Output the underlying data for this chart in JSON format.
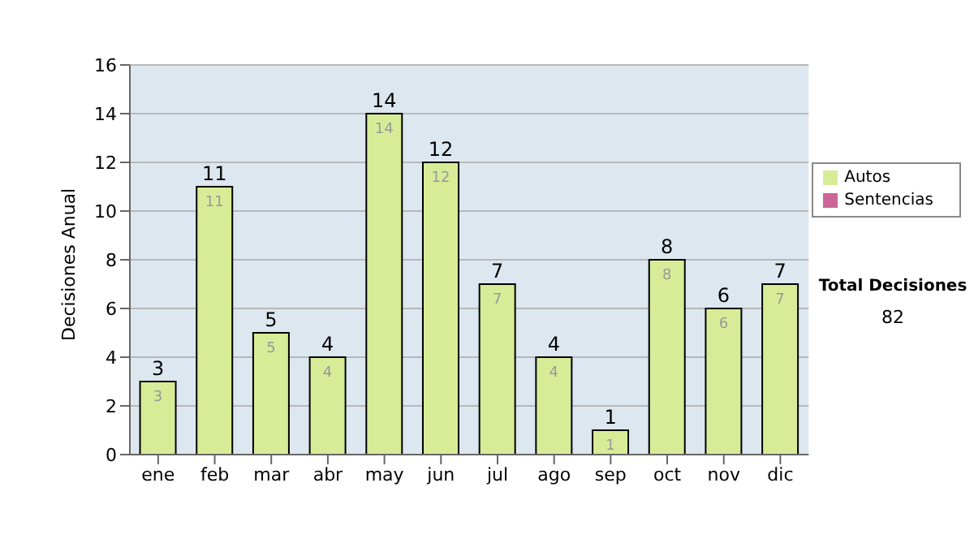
{
  "chart_data": {
    "type": "bar",
    "ylabel": "Decisiones Anual",
    "categories": [
      "ene",
      "feb",
      "mar",
      "abr",
      "may",
      "jun",
      "jul",
      "ago",
      "sep",
      "oct",
      "nov",
      "dic"
    ],
    "stacked": true,
    "series": [
      {
        "name": "Sentencias",
        "color": "#cc6699",
        "values": [
          0,
          0,
          0,
          0,
          0,
          0,
          0,
          0,
          0,
          0,
          0,
          0
        ]
      },
      {
        "name": "Autos",
        "color": "#d8ec98",
        "values": [
          3,
          11,
          5,
          4,
          14,
          12,
          7,
          4,
          1,
          8,
          6,
          7
        ],
        "value_labels": [
          "3",
          "11",
          "5",
          "4",
          "14",
          "12",
          "7",
          "4",
          "1",
          "8",
          "6",
          "7"
        ]
      }
    ],
    "totals": [
      "3",
      "11",
      "5",
      "4",
      "14",
      "12",
      "7",
      "4",
      "1",
      "8",
      "6",
      "7"
    ],
    "ylim": [
      0,
      16
    ],
    "yticks": [
      0,
      2,
      4,
      6,
      8,
      10,
      12,
      14,
      16
    ],
    "grid": "y",
    "legend": "right",
    "annotations": [
      "Total Decisiones",
      "82"
    ]
  }
}
